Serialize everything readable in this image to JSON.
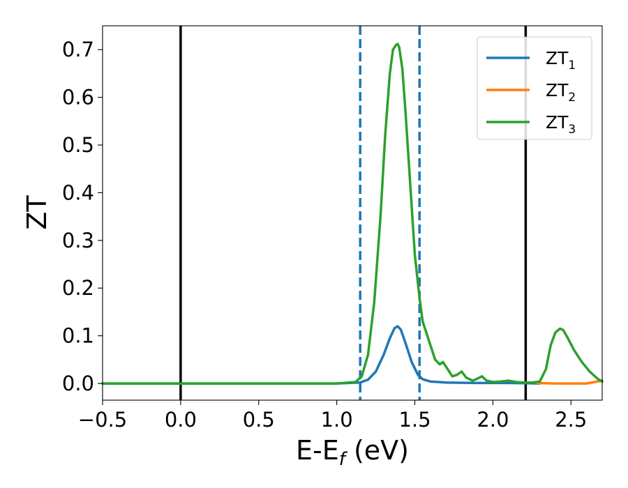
{
  "chart_data": {
    "type": "line",
    "xlabel_main": "E-E",
    "xlabel_sub": "f",
    "xlabel_unit": " (eV)",
    "ylabel": "ZT",
    "xlim": [
      -0.5,
      2.7
    ],
    "ylim": [
      -0.035,
      0.75
    ],
    "xticks": [
      -0.5,
      0.0,
      0.5,
      1.0,
      1.5,
      2.0,
      2.5
    ],
    "xtick_labels": [
      "−0.5",
      "0.0",
      "0.5",
      "1.0",
      "1.5",
      "2.0",
      "2.5"
    ],
    "yticks": [
      0.0,
      0.1,
      0.2,
      0.3,
      0.4,
      0.5,
      0.6,
      0.7
    ],
    "ytick_labels": [
      "0.0",
      "0.1",
      "0.2",
      "0.3",
      "0.4",
      "0.5",
      "0.6",
      "0.7"
    ],
    "grid": false,
    "legend_position": "top-right",
    "vlines": [
      {
        "x": 0.0,
        "style": "solid",
        "color": "#000000"
      },
      {
        "x": 2.21,
        "style": "solid",
        "color": "#000000"
      },
      {
        "x": 1.15,
        "style": "dashed",
        "color": "#1f77b4"
      },
      {
        "x": 1.53,
        "style": "dashed",
        "color": "#1f77b4"
      }
    ],
    "series": [
      {
        "name": "ZT",
        "sub": "1",
        "color": "#1f77b4",
        "x": [
          -0.5,
          1.0,
          1.15,
          1.2,
          1.25,
          1.3,
          1.34,
          1.37,
          1.39,
          1.41,
          1.44,
          1.48,
          1.52,
          1.55,
          1.6,
          1.7,
          1.9,
          2.1,
          2.3
        ],
        "y": [
          0.0,
          0.0,
          0.002,
          0.008,
          0.025,
          0.06,
          0.095,
          0.116,
          0.12,
          0.113,
          0.085,
          0.045,
          0.018,
          0.009,
          0.004,
          0.002,
          0.001,
          0.001,
          0.0
        ]
      },
      {
        "name": "ZT",
        "sub": "2",
        "color": "#ff7f0e",
        "x": [
          2.28,
          2.4,
          2.5,
          2.6,
          2.65,
          2.7
        ],
        "y": [
          0.001,
          0.0,
          0.0,
          0.0,
          0.003,
          0.006
        ]
      },
      {
        "name": "ZT",
        "sub": "3",
        "color": "#2ca02c",
        "x": [
          -0.5,
          1.0,
          1.12,
          1.16,
          1.2,
          1.24,
          1.28,
          1.31,
          1.34,
          1.36,
          1.38,
          1.39,
          1.4,
          1.42,
          1.44,
          1.47,
          1.5,
          1.53,
          1.55,
          1.57,
          1.6,
          1.63,
          1.66,
          1.68,
          1.71,
          1.74,
          1.77,
          1.8,
          1.83,
          1.87,
          1.9,
          1.93,
          1.96,
          2.0,
          2.05,
          2.1,
          2.15,
          2.2,
          2.25,
          2.3,
          2.34,
          2.37,
          2.4,
          2.43,
          2.45,
          2.48,
          2.52,
          2.57,
          2.62,
          2.67,
          2.7
        ],
        "y": [
          0.0,
          0.0,
          0.003,
          0.015,
          0.06,
          0.17,
          0.35,
          0.52,
          0.65,
          0.7,
          0.71,
          0.712,
          0.705,
          0.66,
          0.57,
          0.42,
          0.27,
          0.18,
          0.13,
          0.11,
          0.08,
          0.05,
          0.04,
          0.045,
          0.03,
          0.015,
          0.018,
          0.025,
          0.012,
          0.006,
          0.01,
          0.015,
          0.006,
          0.003,
          0.004,
          0.006,
          0.003,
          0.002,
          0.002,
          0.004,
          0.03,
          0.08,
          0.107,
          0.115,
          0.112,
          0.095,
          0.07,
          0.045,
          0.025,
          0.01,
          0.004
        ]
      }
    ]
  }
}
